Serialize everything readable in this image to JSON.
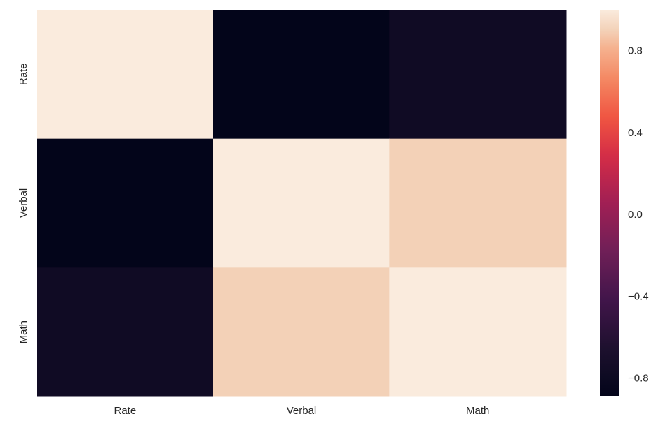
{
  "chart_data": {
    "type": "heatmap",
    "title": "",
    "xlabel": "",
    "ylabel": "",
    "x_categories": [
      "Rate",
      "Verbal",
      "Math"
    ],
    "y_categories": [
      "Rate",
      "Verbal",
      "Math"
    ],
    "values": [
      [
        1.0,
        -0.89,
        -0.77
      ],
      [
        -0.89,
        1.0,
        0.9
      ],
      [
        -0.77,
        0.9,
        1.0
      ]
    ],
    "colorbar": {
      "vmin": -0.89,
      "vmax": 1.0,
      "ticks": [
        0.8,
        0.4,
        0.0,
        -0.4,
        -0.8
      ],
      "tick_labels": [
        "0.8",
        "0.4",
        "0.0",
        "−0.4",
        "−0.8"
      ],
      "colormap": "rocket",
      "position": "right"
    },
    "grid": false
  }
}
